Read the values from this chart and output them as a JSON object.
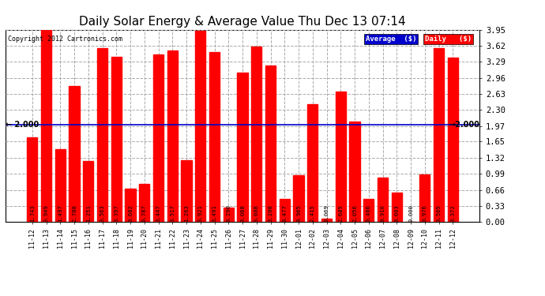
{
  "title": "Daily Solar Energy & Average Value Thu Dec 13 07:14",
  "copyright": "Copyright 2012 Cartronics.com",
  "categories": [
    "11-12",
    "11-13",
    "11-14",
    "11-15",
    "11-16",
    "11-17",
    "11-18",
    "11-19",
    "11-20",
    "11-21",
    "11-22",
    "11-23",
    "11-24",
    "11-25",
    "11-26",
    "11-27",
    "11-28",
    "11-29",
    "11-30",
    "12-01",
    "12-02",
    "12-03",
    "12-04",
    "12-05",
    "12-06",
    "12-07",
    "12-08",
    "12-09",
    "12-10",
    "12-11",
    "12-12"
  ],
  "values": [
    1.743,
    3.949,
    1.497,
    2.788,
    1.251,
    3.563,
    3.397,
    0.682,
    0.787,
    3.447,
    3.517,
    1.263,
    3.921,
    3.491,
    0.29,
    3.068,
    3.608,
    3.208,
    0.477,
    0.965,
    2.415,
    0.069,
    2.685,
    2.056,
    0.466,
    0.91,
    0.603,
    0.0,
    0.976,
    3.565,
    3.372
  ],
  "average_value": 2.0,
  "bar_color": "#ff0000",
  "average_line_color": "#0000cc",
  "background_color": "#ffffff",
  "grid_color": "#aaaaaa",
  "ylim": [
    0,
    3.95
  ],
  "yticks": [
    0.0,
    0.33,
    0.66,
    0.99,
    1.32,
    1.65,
    1.97,
    2.3,
    2.63,
    2.96,
    3.29,
    3.62,
    3.95
  ],
  "title_fontsize": 11,
  "bar_width": 0.75,
  "legend_avg_bg": "#0000cc",
  "legend_daily_bg": "#ff0000",
  "avg_label": "Average  ($)",
  "daily_label": "Daily   ($)"
}
